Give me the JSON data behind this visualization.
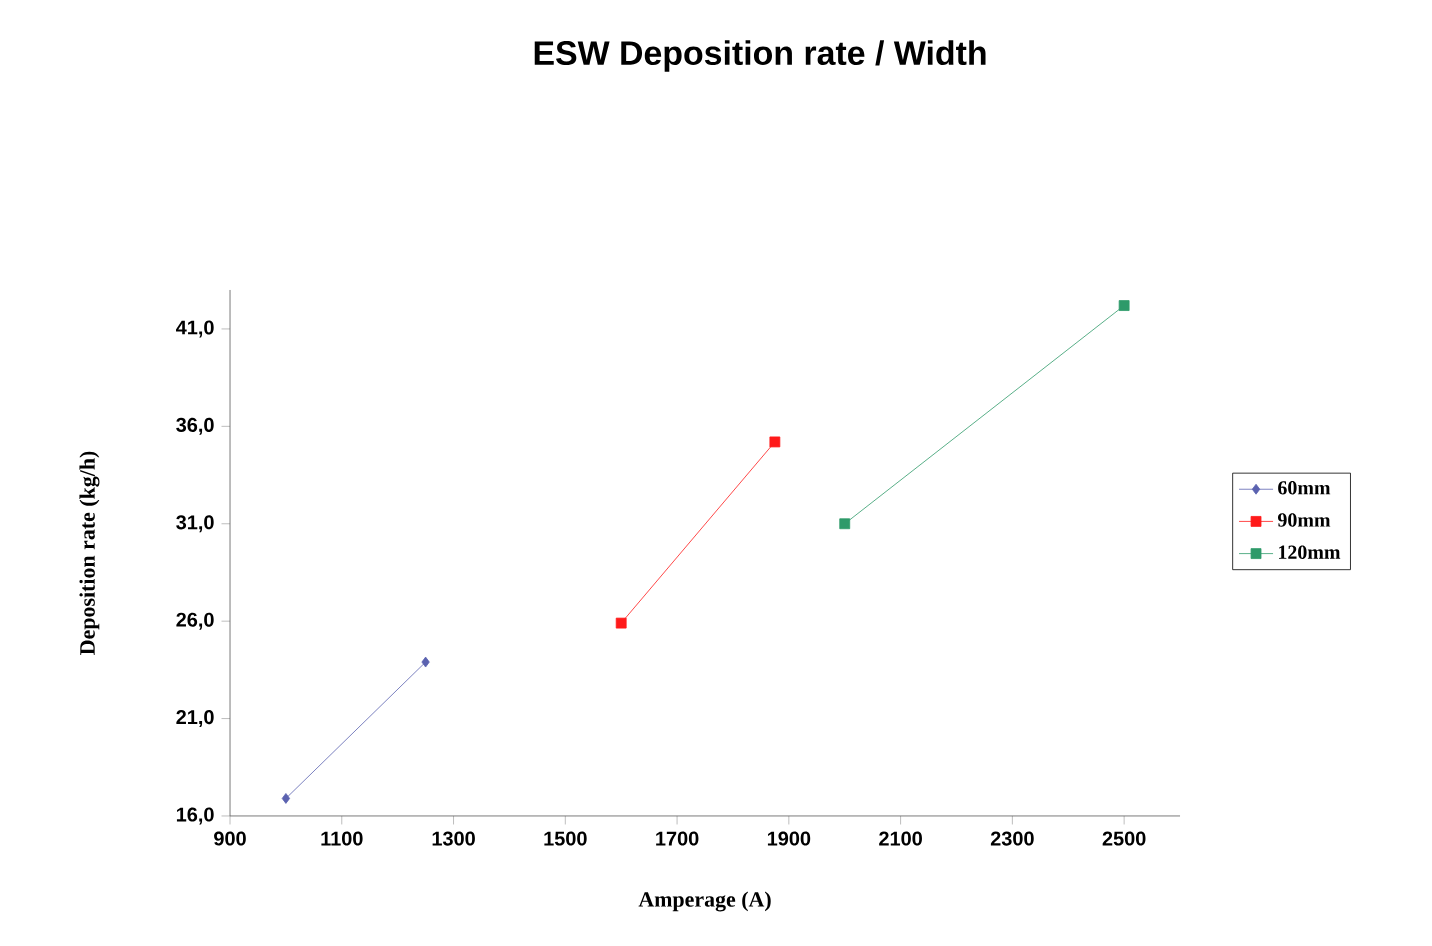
{
  "chart_data": {
    "type": "line",
    "title": "ESW Deposition rate / Width",
    "xlabel": "Amperage (A)",
    "ylabel": "Deposition rate (kg/h)",
    "xlim": [
      900,
      2600
    ],
    "xticks": [
      900,
      1100,
      1300,
      1500,
      1700,
      1900,
      2100,
      2300,
      2500
    ],
    "ylim": [
      16,
      43
    ],
    "yticks": [
      {
        "value": 16,
        "label": "16,0"
      },
      {
        "value": 21,
        "label": "21,0"
      },
      {
        "value": 26,
        "label": "26,0"
      },
      {
        "value": 31,
        "label": "31,0"
      },
      {
        "value": 36,
        "label": "36,0"
      },
      {
        "value": 41,
        "label": "41,0"
      }
    ],
    "legend": "right",
    "line_style": "solid",
    "series": [
      {
        "name": "60mm",
        "color": "#5b62b0",
        "marker": "diamond",
        "x": [
          1000,
          1250
        ],
        "values": [
          16.9,
          23.9
        ]
      },
      {
        "name": "90mm",
        "color": "#ff1a1a",
        "marker": "square",
        "x": [
          1600,
          1875
        ],
        "values": [
          25.9,
          35.2
        ]
      },
      {
        "name": "120mm",
        "color": "#2e9a6a",
        "marker": "square",
        "x": [
          2000,
          2500
        ],
        "values": [
          31.0,
          42.2
        ]
      }
    ]
  }
}
